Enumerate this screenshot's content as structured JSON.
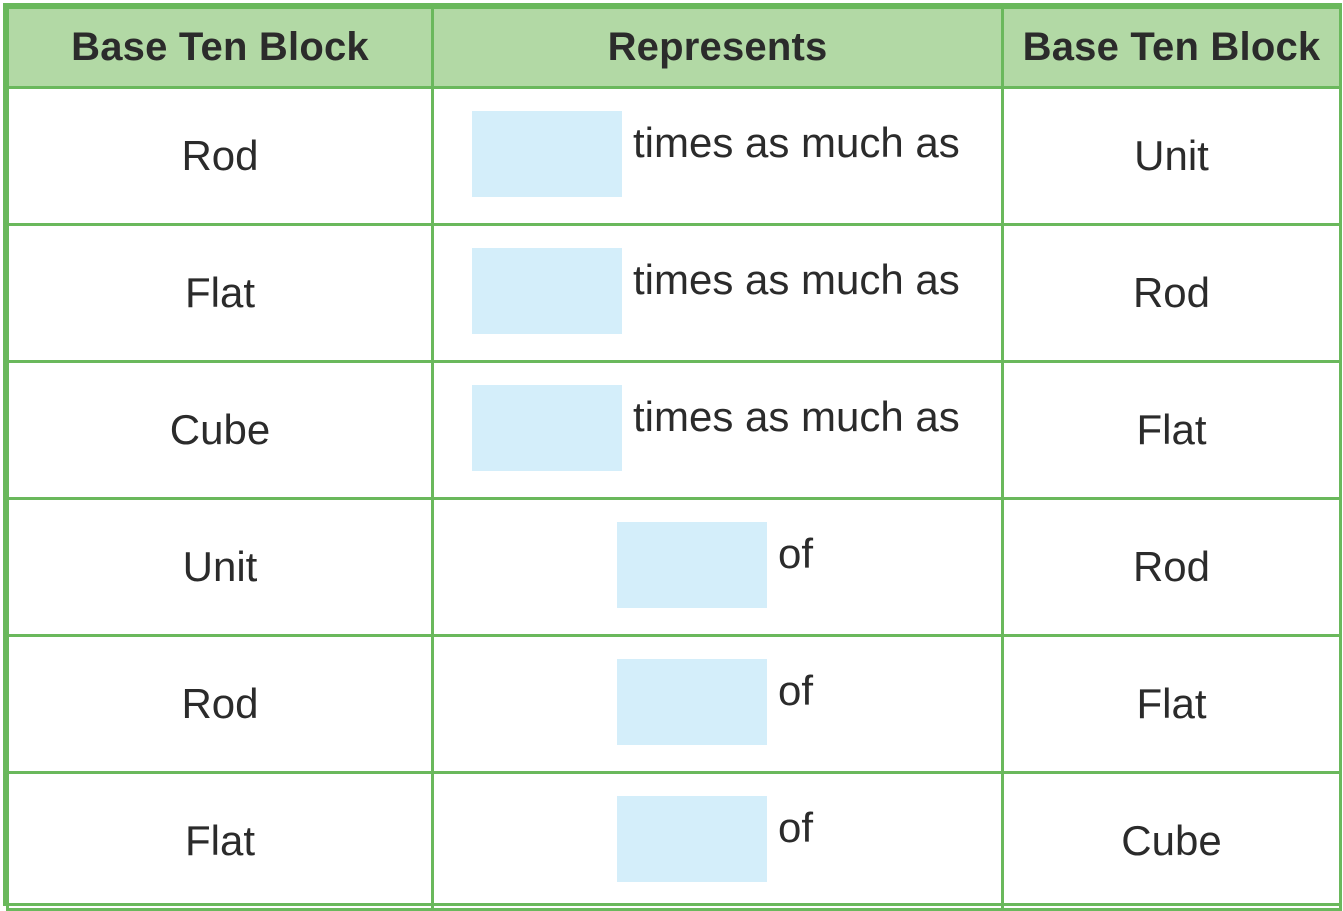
{
  "table": {
    "headers": [
      "Base Ten Block",
      "Represents",
      "Base Ten Block"
    ],
    "rows": [
      {
        "left": "Rod",
        "relation": "times as much as",
        "right": "Unit",
        "answer": ""
      },
      {
        "left": "Flat",
        "relation": "times as much as",
        "right": "Rod",
        "answer": ""
      },
      {
        "left": "Cube",
        "relation": "times as much as",
        "right": "Flat",
        "answer": ""
      },
      {
        "left": "Unit",
        "relation": "of",
        "right": "Rod",
        "answer": ""
      },
      {
        "left": "Rod",
        "relation": "of",
        "right": "Flat",
        "answer": ""
      },
      {
        "left": "Flat",
        "relation": "of",
        "right": "Cube",
        "answer": ""
      }
    ]
  },
  "colors": {
    "border": "#6ab85c",
    "header_bg": "#b2d9a5",
    "answer_box_bg": "#d4eefa"
  }
}
